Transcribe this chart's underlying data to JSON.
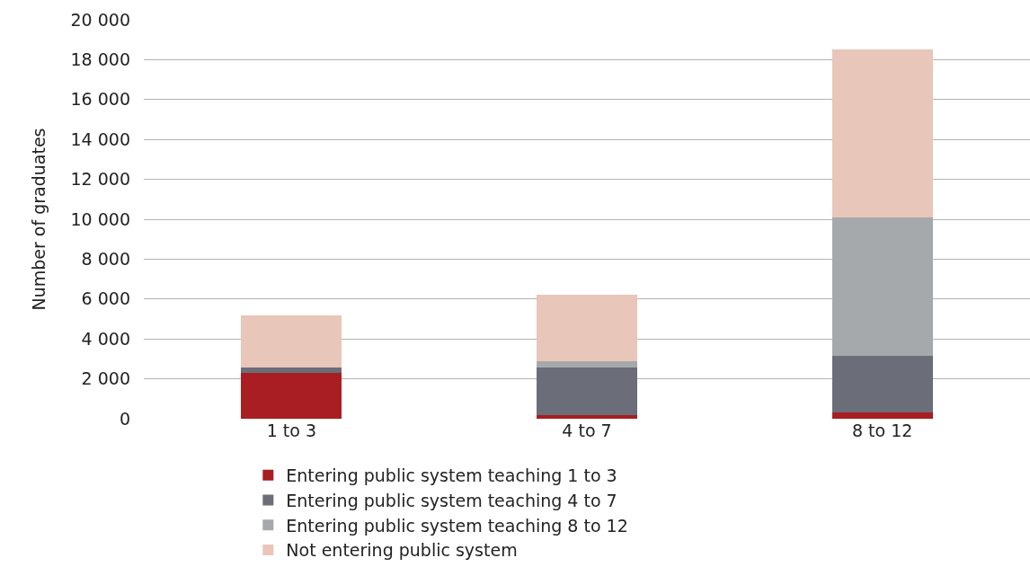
{
  "chart_data": {
    "type": "bar",
    "stacked": true,
    "ylabel": "Number of graduates",
    "categories": [
      "1 to 3",
      "4 to 7",
      "8 to 12"
    ],
    "series": [
      {
        "name": "Entering public system teaching 1 to 3",
        "color": "#a81e22",
        "values": [
          2300,
          200,
          300
        ]
      },
      {
        "name": "Entering public system teaching 4 to 7",
        "color": "#6b6d78",
        "values": [
          250,
          2350,
          2850
        ]
      },
      {
        "name": "Entering public system teaching 8 to 12",
        "color": "#a6a9ac",
        "values": [
          0,
          350,
          6950
        ]
      },
      {
        "name": "Not entering public system",
        "color": "#e8c6b9",
        "values": [
          2620,
          3300,
          8400
        ]
      }
    ],
    "ylim": [
      0,
      20000
    ],
    "yticks": [
      {
        "value": 0,
        "label": "0"
      },
      {
        "value": 2000,
        "label": "2 000"
      },
      {
        "value": 4000,
        "label": "4 000"
      },
      {
        "value": 6000,
        "label": "6 000"
      },
      {
        "value": 8000,
        "label": "8 000"
      },
      {
        "value": 10000,
        "label": "10 000"
      },
      {
        "value": 12000,
        "label": "12 000"
      },
      {
        "value": 14000,
        "label": "14 000"
      },
      {
        "value": 16000,
        "label": "16 000"
      },
      {
        "value": 18000,
        "label": "18 000"
      },
      {
        "value": 20000,
        "label": "20 000"
      }
    ],
    "grid": "y",
    "legend": "bottom"
  }
}
